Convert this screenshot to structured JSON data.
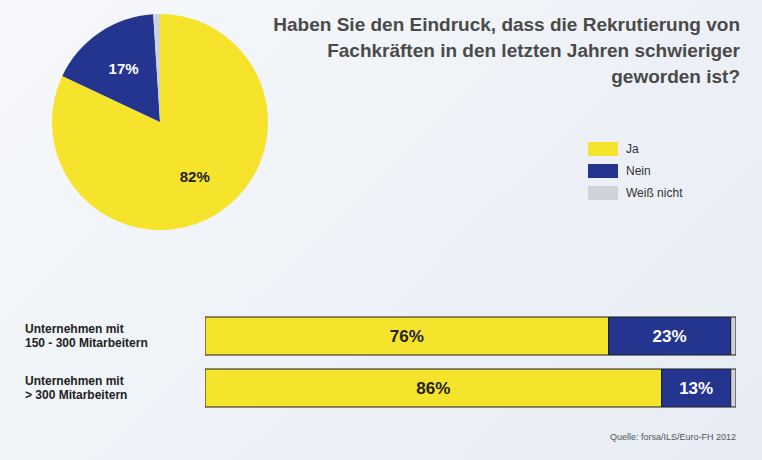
{
  "chart_data": [
    {
      "type": "pie",
      "title": "Haben Sie den Eindruck, dass die Rekrutierung von Fachkräften in den letzten Jahren schwieriger geworden ist?",
      "categories": [
        "Ja",
        "Nein",
        "Weiß nicht"
      ],
      "values": [
        82,
        17,
        1
      ],
      "value_labels": [
        "82%",
        "17%",
        null
      ],
      "colors": [
        "#f5e32c",
        "#23358f",
        "#cfd2d8"
      ],
      "data_labels": true,
      "legend": "right"
    },
    {
      "type": "bar",
      "orientation": "horizontal",
      "stacked": true,
      "categories": [
        "Unternehmen mit 150 - 300 Mitarbeitern",
        "Unternehmen mit > 300 Mitarbeitern"
      ],
      "series": [
        {
          "name": "Ja",
          "color": "#f5e32c",
          "values": [
            76,
            86
          ],
          "value_labels": [
            "76%",
            "86%"
          ]
        },
        {
          "name": "Nein",
          "color": "#23358f",
          "values": [
            23,
            13
          ],
          "value_labels": [
            "23%",
            "13%"
          ]
        },
        {
          "name": "Weiß nicht",
          "color": "#cfd2d8",
          "values": [
            1,
            1
          ],
          "value_labels": [
            null,
            null
          ]
        }
      ],
      "xlim": [
        0,
        100
      ],
      "tick_labels": false,
      "data_labels": true,
      "annotations": [
        "Quelle: forsa/ILS/Euro-FH 2012"
      ]
    }
  ]
}
